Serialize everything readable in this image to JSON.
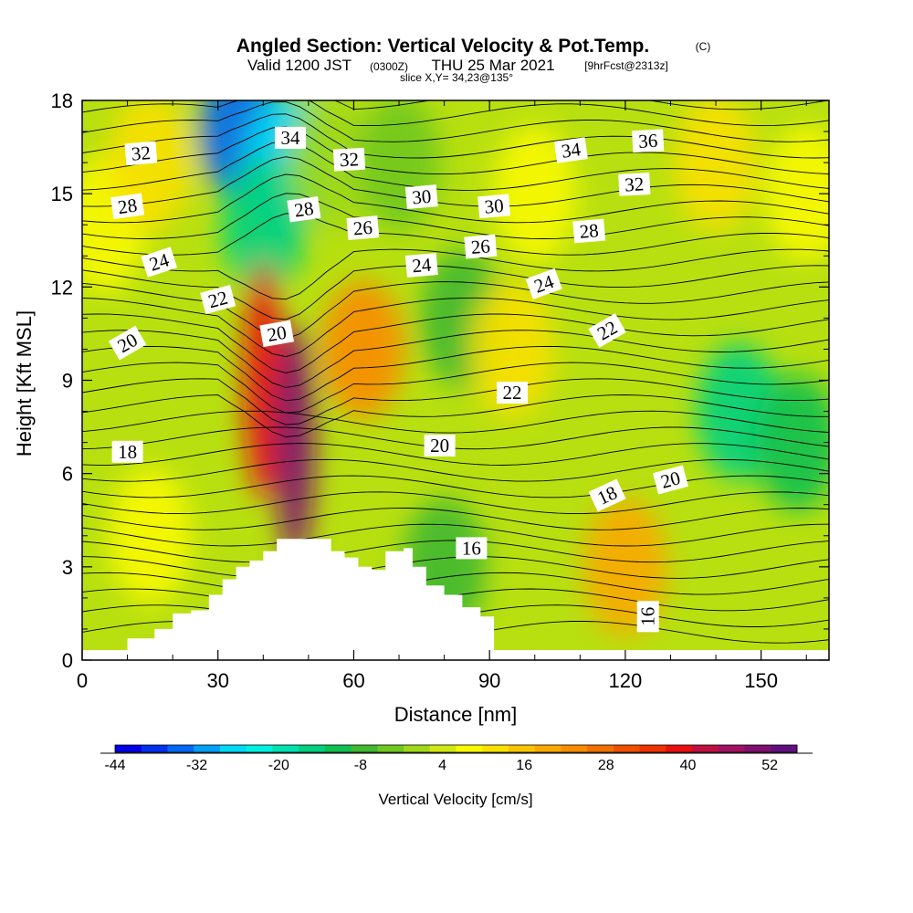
{
  "chart_data": {
    "type": "heatmap",
    "title": "Angled Section: Vertical Velocity & Pot.Temp.",
    "title_mark": "(C)",
    "subtitle_valid": "Valid 1200 JST",
    "subtitle_utc": "(0300Z)",
    "subtitle_date": "THU 25 Mar 2021",
    "subtitle_fcst": "[9hrFcst@2313z]",
    "slice_info": "slice X,Y= 34,23@135°",
    "xlabel": "Distance [nm]",
    "ylabel": "Height [Kft MSL]",
    "xlim": [
      0,
      165
    ],
    "ylim": [
      0,
      18
    ],
    "x_ticks": [
      "0",
      "30",
      "60",
      "90",
      "120",
      "150"
    ],
    "x_tick_values": [
      0,
      30,
      60,
      90,
      120,
      150
    ],
    "y_ticks": [
      "0",
      "3",
      "6",
      "9",
      "12",
      "15",
      "18"
    ],
    "y_tick_values": [
      0,
      3,
      6,
      9,
      12,
      15,
      18
    ],
    "colorbar": {
      "title": "Vertical Velocity [cm/s]",
      "labels": [
        "-44",
        "-32",
        "-20",
        "-8",
        "4",
        "16",
        "28",
        "40",
        "52"
      ],
      "label_values": [
        -44,
        -32,
        -20,
        -8,
        4,
        16,
        28,
        40,
        52
      ],
      "min": -44,
      "max": 56,
      "colors": [
        "#0000e6",
        "#0030f0",
        "#0068f5",
        "#00a0f5",
        "#00d8f5",
        "#00f0e0",
        "#00e0b0",
        "#00d080",
        "#10c050",
        "#40b830",
        "#70c820",
        "#a0d818",
        "#d0e810",
        "#f8f800",
        "#f8e000",
        "#f8c400",
        "#f8a800",
        "#f88c00",
        "#f07000",
        "#f05000",
        "#f03000",
        "#e81010",
        "#c01040",
        "#a01060",
        "#801070",
        "#601080"
      ]
    },
    "velocity_cells_cm_s": [
      {
        "x": 5,
        "y": 14,
        "v": 8
      },
      {
        "x": 15,
        "y": 16,
        "v": 10
      },
      {
        "x": 35,
        "y": 17,
        "v": -36
      },
      {
        "x": 45,
        "y": 16,
        "v": -28
      },
      {
        "x": 40,
        "y": 14,
        "v": -16
      },
      {
        "x": 55,
        "y": 16,
        "v": 0
      },
      {
        "x": 70,
        "y": 16,
        "v": -4
      },
      {
        "x": 100,
        "y": 15,
        "v": 6
      },
      {
        "x": 140,
        "y": 16,
        "v": 12
      },
      {
        "x": 160,
        "y": 15,
        "v": 8
      },
      {
        "x": 40,
        "y": 9,
        "v": 40
      },
      {
        "x": 47,
        "y": 7,
        "v": 50
      },
      {
        "x": 62,
        "y": 10,
        "v": 22
      },
      {
        "x": 84,
        "y": 11,
        "v": -8
      },
      {
        "x": 95,
        "y": 10,
        "v": 10
      },
      {
        "x": 120,
        "y": 3,
        "v": 18
      },
      {
        "x": 145,
        "y": 8,
        "v": -14
      },
      {
        "x": 158,
        "y": 7,
        "v": -12
      },
      {
        "x": 80,
        "y": 3,
        "v": -6
      },
      {
        "x": 15,
        "y": 4,
        "v": 6
      }
    ],
    "theta_isolines_C": [
      "16",
      "18",
      "20",
      "22",
      "24",
      "26",
      "28",
      "30",
      "32",
      "34",
      "36"
    ],
    "contour_labels": [
      {
        "text": "32",
        "x": 13,
        "y": 16.3,
        "rot": -5
      },
      {
        "text": "28",
        "x": 10,
        "y": 14.6,
        "rot": -8
      },
      {
        "text": "24",
        "x": 17,
        "y": 12.8,
        "rot": -18
      },
      {
        "text": "22",
        "x": 30,
        "y": 11.6,
        "rot": -15
      },
      {
        "text": "20",
        "x": 10,
        "y": 10.2,
        "rot": -30
      },
      {
        "text": "20",
        "x": 43,
        "y": 10.5,
        "rot": -10
      },
      {
        "text": "18",
        "x": 10,
        "y": 6.7,
        "rot": 0
      },
      {
        "text": "34",
        "x": 46,
        "y": 16.8,
        "rot": 0
      },
      {
        "text": "32",
        "x": 59,
        "y": 16.1,
        "rot": -3
      },
      {
        "text": "28",
        "x": 49,
        "y": 14.5,
        "rot": -8
      },
      {
        "text": "26",
        "x": 62,
        "y": 13.9,
        "rot": -5
      },
      {
        "text": "30",
        "x": 75,
        "y": 14.9,
        "rot": -5
      },
      {
        "text": "30",
        "x": 91,
        "y": 14.6,
        "rot": -5
      },
      {
        "text": "24",
        "x": 75,
        "y": 12.7,
        "rot": -5
      },
      {
        "text": "26",
        "x": 88,
        "y": 13.3,
        "rot": -5
      },
      {
        "text": "24",
        "x": 102,
        "y": 12.1,
        "rot": -20
      },
      {
        "text": "28",
        "x": 112,
        "y": 13.8,
        "rot": -5
      },
      {
        "text": "34",
        "x": 108,
        "y": 16.4,
        "rot": -8
      },
      {
        "text": "32",
        "x": 122,
        "y": 15.3,
        "rot": -3
      },
      {
        "text": "36",
        "x": 125,
        "y": 16.7,
        "rot": -3
      },
      {
        "text": "22",
        "x": 116,
        "y": 10.6,
        "rot": -30
      },
      {
        "text": "22",
        "x": 95,
        "y": 8.6,
        "rot": 0
      },
      {
        "text": "20",
        "x": 79,
        "y": 6.9,
        "rot": 0
      },
      {
        "text": "20",
        "x": 130,
        "y": 5.8,
        "rot": -15
      },
      {
        "text": "18",
        "x": 116,
        "y": 5.3,
        "rot": -25
      },
      {
        "text": "16",
        "x": 86,
        "y": 3.6,
        "rot": 0
      },
      {
        "text": "16",
        "x": 125,
        "y": 1.4,
        "rot": -90
      }
    ]
  }
}
